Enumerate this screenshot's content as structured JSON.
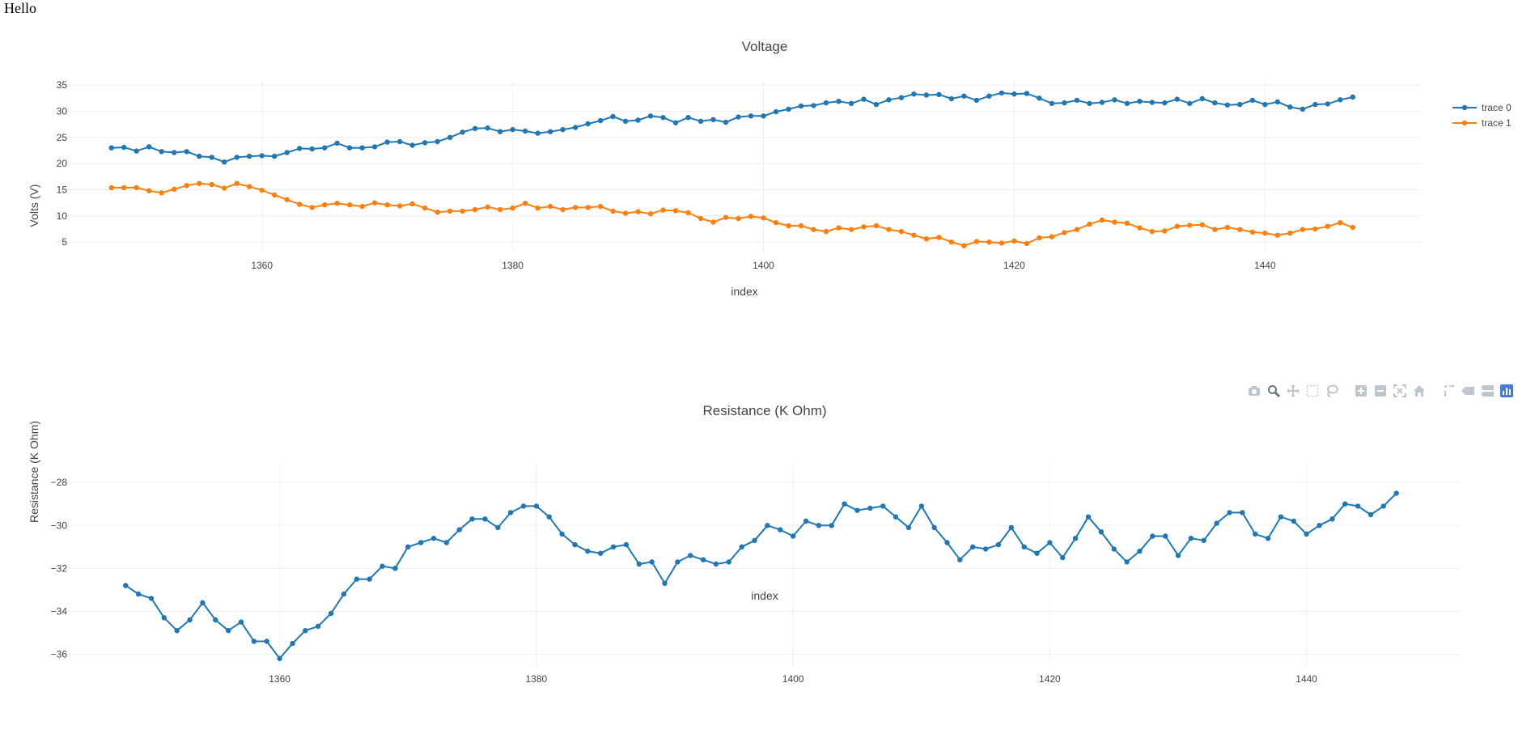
{
  "page": {
    "heading": "Hello"
  },
  "chart_data": [
    {
      "type": "line",
      "title": "Voltage",
      "xlabel": "index",
      "ylabel": "Volts (V)",
      "xlim": [
        1343.5,
        1452.5
      ],
      "ylim": [
        3.0,
        35.8
      ],
      "xticks": [
        1360,
        1380,
        1400,
        1420,
        1440
      ],
      "yticks": [
        5,
        10,
        15,
        20,
        25,
        30,
        35
      ],
      "grid": true,
      "legend": "top-right",
      "x": [
        1348,
        1349,
        1350,
        1351,
        1352,
        1353,
        1354,
        1355,
        1356,
        1357,
        1358,
        1359,
        1360,
        1361,
        1362,
        1363,
        1364,
        1365,
        1366,
        1367,
        1368,
        1369,
        1370,
        1371,
        1372,
        1373,
        1374,
        1375,
        1376,
        1377,
        1378,
        1379,
        1380,
        1381,
        1382,
        1383,
        1384,
        1385,
        1386,
        1387,
        1388,
        1389,
        1390,
        1391,
        1392,
        1393,
        1394,
        1395,
        1396,
        1397,
        1398,
        1399,
        1400,
        1401,
        1402,
        1403,
        1404,
        1405,
        1406,
        1407,
        1408,
        1409,
        1410,
        1411,
        1412,
        1413,
        1414,
        1415,
        1416,
        1417,
        1418,
        1419,
        1420,
        1421,
        1422,
        1423,
        1424,
        1425,
        1426,
        1427,
        1428,
        1429,
        1430,
        1431,
        1432,
        1433,
        1434,
        1435,
        1436,
        1437,
        1438,
        1439,
        1440,
        1441,
        1442,
        1443,
        1444,
        1445,
        1446,
        1447
      ],
      "series": [
        {
          "name": "trace 0",
          "color": "#1f77b4",
          "values": [
            23.0,
            23.1,
            22.4,
            23.2,
            22.3,
            22.1,
            22.3,
            21.4,
            21.2,
            20.3,
            21.2,
            21.4,
            21.5,
            21.4,
            22.1,
            22.9,
            22.8,
            23.0,
            23.9,
            23.0,
            23.0,
            23.2,
            24.1,
            24.2,
            23.5,
            24.0,
            24.2,
            25.0,
            26.0,
            26.7,
            26.8,
            26.1,
            26.5,
            26.2,
            25.8,
            26.1,
            26.5,
            26.9,
            27.6,
            28.2,
            29.0,
            28.1,
            28.3,
            29.1,
            28.8,
            27.8,
            28.8,
            28.1,
            28.4,
            27.9,
            28.9,
            29.1,
            29.1,
            29.9,
            30.4,
            31.0,
            31.1,
            31.6,
            31.9,
            31.5,
            32.3,
            31.3,
            32.2,
            32.6,
            33.3,
            33.1,
            33.2,
            32.4,
            32.9,
            32.1,
            32.9,
            33.5,
            33.3,
            33.4,
            32.5,
            31.5,
            31.6,
            32.1,
            31.5,
            31.7,
            32.2,
            31.5,
            31.9,
            31.7,
            31.6,
            32.3,
            31.5,
            32.4,
            31.6,
            31.2,
            31.3,
            32.1,
            31.3,
            31.8,
            30.8,
            30.4,
            31.3,
            31.4,
            32.2,
            32.7
          ]
        },
        {
          "name": "trace 1",
          "color": "#ff7f0e",
          "values": [
            15.4,
            15.4,
            15.4,
            14.8,
            14.4,
            15.1,
            15.8,
            16.2,
            16.0,
            15.3,
            16.2,
            15.6,
            14.9,
            14.0,
            13.1,
            12.2,
            11.6,
            12.1,
            12.4,
            12.1,
            11.8,
            12.5,
            12.1,
            11.9,
            12.3,
            11.5,
            10.7,
            10.9,
            10.9,
            11.2,
            11.7,
            11.2,
            11.5,
            12.4,
            11.5,
            11.8,
            11.2,
            11.6,
            11.6,
            11.8,
            10.9,
            10.5,
            10.8,
            10.4,
            11.1,
            11.0,
            10.6,
            9.5,
            8.8,
            9.7,
            9.5,
            9.9,
            9.6,
            8.7,
            8.1,
            8.1,
            7.4,
            7.0,
            7.7,
            7.4,
            7.9,
            8.1,
            7.4,
            7.0,
            6.3,
            5.6,
            5.9,
            5.0,
            4.3,
            5.1,
            5.0,
            4.8,
            5.2,
            4.7,
            5.8,
            6.0,
            6.8,
            7.4,
            8.4,
            9.2,
            8.8,
            8.6,
            7.7,
            7.0,
            7.1,
            8.0,
            8.2,
            8.3,
            7.4,
            7.8,
            7.4,
            6.9,
            6.7,
            6.3,
            6.7,
            7.4,
            7.5,
            8.0,
            8.7,
            7.8
          ]
        }
      ]
    },
    {
      "type": "line",
      "title": "Resistance (K Ohm)",
      "xlabel": "index",
      "ylabel": "Resistance (K Ohm)",
      "xlim": [
        1342.5,
        1452.0
      ],
      "ylim": [
        -36.55,
        -27.2
      ],
      "xticks": [
        1360,
        1380,
        1400,
        1420,
        1440
      ],
      "yticks": [
        -28,
        -30,
        -32,
        -34,
        -36
      ],
      "ytick_labels": [
        "−28",
        "−30",
        "−32",
        "−34",
        "−36"
      ],
      "grid": true,
      "legend": "none",
      "x": [
        1348,
        1349,
        1350,
        1351,
        1352,
        1353,
        1354,
        1355,
        1356,
        1357,
        1358,
        1359,
        1360,
        1361,
        1362,
        1363,
        1364,
        1365,
        1366,
        1367,
        1368,
        1369,
        1370,
        1371,
        1372,
        1373,
        1374,
        1375,
        1376,
        1377,
        1378,
        1379,
        1380,
        1381,
        1382,
        1383,
        1384,
        1385,
        1386,
        1387,
        1388,
        1389,
        1390,
        1391,
        1392,
        1393,
        1394,
        1395,
        1396,
        1397,
        1398,
        1399,
        1400,
        1401,
        1402,
        1403,
        1404,
        1405,
        1406,
        1407,
        1408,
        1409,
        1410,
        1411,
        1412,
        1413,
        1414,
        1415,
        1416,
        1417,
        1418,
        1419,
        1420,
        1421,
        1422,
        1423,
        1424,
        1425,
        1426,
        1427,
        1428,
        1429,
        1430,
        1431,
        1432,
        1433,
        1434,
        1435,
        1436,
        1437,
        1438,
        1439,
        1440,
        1441,
        1442,
        1443,
        1444,
        1445,
        1446,
        1447
      ],
      "series": [
        {
          "name": "",
          "color": "#1f77b4",
          "values": [
            -32.8,
            -33.2,
            -33.4,
            -34.3,
            -34.9,
            -34.4,
            -33.6,
            -34.4,
            -34.9,
            -34.5,
            -35.4,
            -35.4,
            -36.2,
            -35.5,
            -34.9,
            -34.7,
            -34.1,
            -33.2,
            -32.5,
            -32.5,
            -31.9,
            -32.0,
            -31.0,
            -30.8,
            -30.6,
            -30.8,
            -30.2,
            -29.7,
            -29.7,
            -30.1,
            -29.4,
            -29.1,
            -29.1,
            -29.6,
            -30.4,
            -30.9,
            -31.2,
            -31.3,
            -31.0,
            -30.9,
            -31.8,
            -31.7,
            -32.7,
            -31.7,
            -31.4,
            -31.6,
            -31.8,
            -31.7,
            -31.0,
            -30.7,
            -30.0,
            -30.2,
            -30.5,
            -29.8,
            -30.0,
            -30.0,
            -29.0,
            -29.3,
            -29.2,
            -29.1,
            -29.6,
            -30.1,
            -29.1,
            -30.1,
            -30.8,
            -31.6,
            -31.0,
            -31.1,
            -30.9,
            -30.1,
            -31.0,
            -31.3,
            -30.8,
            -31.5,
            -30.6,
            -29.6,
            -30.3,
            -31.1,
            -31.7,
            -31.2,
            -30.5,
            -30.5,
            -31.4,
            -30.6,
            -30.7,
            -29.9,
            -29.4,
            -29.4,
            -30.4,
            -30.6,
            -29.6,
            -29.8,
            -30.4,
            -30.0,
            -29.7,
            -29.0,
            -29.1,
            -29.5,
            -29.1,
            -28.5
          ]
        }
      ]
    }
  ],
  "modebar": {
    "buttons": [
      "camera-icon",
      "zoom-icon",
      "pan-icon",
      "box-select-icon",
      "lasso-icon",
      "zoom-in-icon",
      "zoom-out-icon",
      "autoscale-icon",
      "home-icon",
      "spike-lines-icon",
      "hover-closest-icon",
      "hover-compare-icon",
      "plotly-logo-icon"
    ],
    "active": "zoom-icon",
    "logo_color": "#447adb"
  }
}
